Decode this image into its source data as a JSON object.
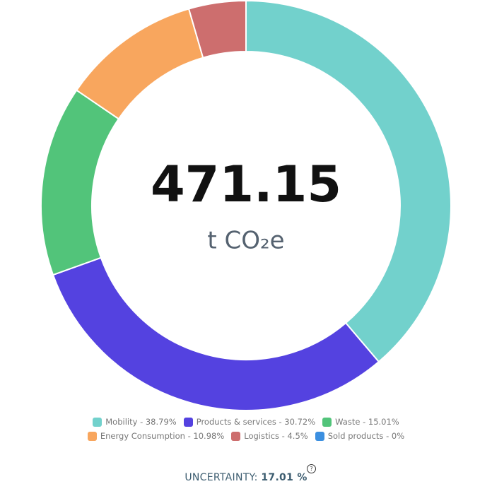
{
  "chart_data": {
    "type": "donut",
    "categories": [
      "Mobility - 38.79%",
      "Products & services - 30.72%",
      "Waste - 15.01%",
      "Energy Consumption - 10.98%",
      "Logistics - 4.5%",
      "Sold products - 0%"
    ],
    "values": [
      38.79,
      30.72,
      15.01,
      10.98,
      4.5,
      0
    ],
    "colors": [
      "#72d1cc",
      "#5442e0",
      "#52c47a",
      "#f8a65e",
      "#cd6e6e",
      "#3b8fe0"
    ],
    "center_value": "471.15",
    "center_unit": "t CO₂e",
    "uncertainty_label": "UNCERTAINTY:",
    "uncertainty_value": "17.01 %",
    "help_icon": "?"
  }
}
